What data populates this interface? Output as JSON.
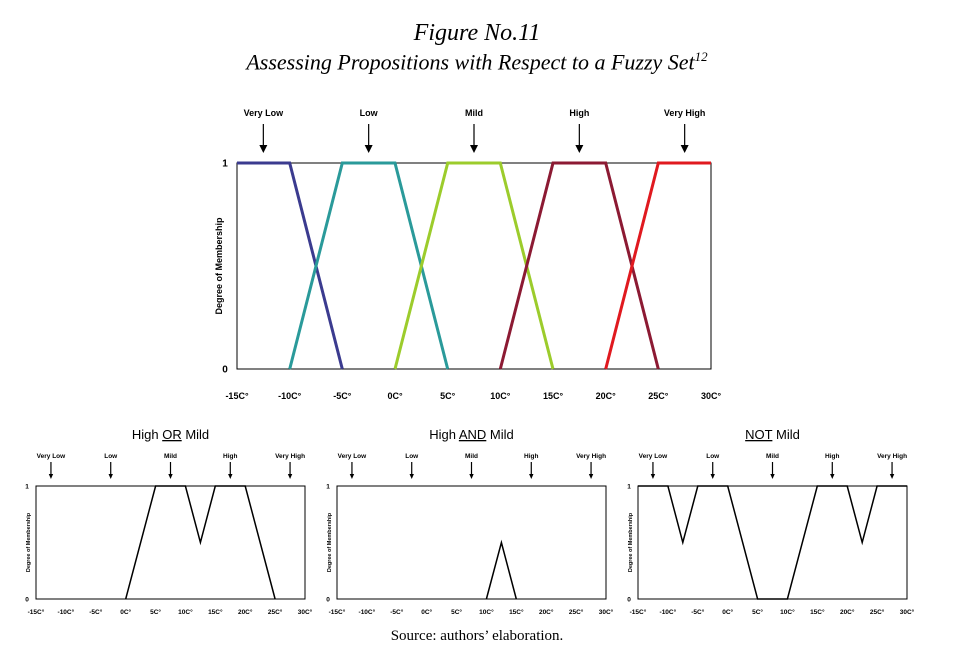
{
  "figure": {
    "title": "Figure No.11",
    "subtitle": "Assessing Propositions with Respect to a Fuzzy Set",
    "subtitle_sup": "12",
    "source": "Source: authors’ elaboration."
  },
  "chart_data": [
    {
      "type": "line",
      "title": "",
      "xlabel": "",
      "ylabel": "Degree of Membership",
      "x_ticks": [
        -15,
        -10,
        -5,
        0,
        5,
        10,
        15,
        20,
        25,
        30
      ],
      "x_tick_labels": [
        "-15C°",
        "-10C°",
        "-5C°",
        "0C°",
        "5C°",
        "10C°",
        "15C°",
        "20C°",
        "25C°",
        "30C°"
      ],
      "y_ticks": [
        0,
        1
      ],
      "y_tick_labels": [
        "0",
        "1"
      ],
      "xlim": [
        -15,
        30
      ],
      "ylim": [
        0,
        1
      ],
      "annotations": [
        {
          "text": "Very Low",
          "x": -12.5
        },
        {
          "text": "Low",
          "x": -2.5
        },
        {
          "text": "Mild",
          "x": 7.5
        },
        {
          "text": "High",
          "x": 17.5
        },
        {
          "text": "Very High",
          "x": 27.5
        }
      ],
      "series": [
        {
          "name": "Very Low",
          "color": "#3b3b8f",
          "points": [
            [
              -15,
              1
            ],
            [
              -10,
              1
            ],
            [
              -5,
              0
            ]
          ]
        },
        {
          "name": "Low",
          "color": "#2a9a9a",
          "points": [
            [
              -10,
              0
            ],
            [
              -5,
              1
            ],
            [
              0,
              1
            ],
            [
              5,
              0
            ]
          ]
        },
        {
          "name": "Mild",
          "color": "#9ccc2c",
          "points": [
            [
              0,
              0
            ],
            [
              5,
              1
            ],
            [
              10,
              1
            ],
            [
              15,
              0
            ]
          ]
        },
        {
          "name": "High",
          "color": "#8c1a33",
          "points": [
            [
              10,
              0
            ],
            [
              15,
              1
            ],
            [
              20,
              1
            ],
            [
              25,
              0
            ]
          ]
        },
        {
          "name": "Very High",
          "color": "#e0191f",
          "points": [
            [
              20,
              0
            ],
            [
              25,
              1
            ],
            [
              30,
              1
            ]
          ]
        }
      ]
    },
    {
      "type": "line",
      "title": "High OR Mild",
      "title_parts": [
        "High ",
        "OR",
        " Mild"
      ],
      "ylabel": "Degree of Membership",
      "x_ticks": [
        -15,
        -10,
        -5,
        0,
        5,
        10,
        15,
        20,
        25,
        30
      ],
      "x_tick_labels": [
        "-15C°",
        "-10C°",
        "-5C°",
        "0C°",
        "5C°",
        "10C°",
        "15C°",
        "20C°",
        "25C°",
        "30C°"
      ],
      "y_ticks": [
        0,
        1
      ],
      "y_tick_labels": [
        "0",
        "1"
      ],
      "xlim": [
        -15,
        30
      ],
      "ylim": [
        0,
        1
      ],
      "annotations": [
        {
          "text": "Very Low",
          "x": -12.5
        },
        {
          "text": "Low",
          "x": -2.5
        },
        {
          "text": "Mild",
          "x": 7.5
        },
        {
          "text": "High",
          "x": 17.5
        },
        {
          "text": "Very High",
          "x": 27.5
        }
      ],
      "series": [
        {
          "name": "High OR Mild",
          "color": "#000000",
          "points": [
            [
              0,
              0
            ],
            [
              5,
              1
            ],
            [
              10,
              1
            ],
            [
              12.5,
              0.5
            ],
            [
              15,
              1
            ],
            [
              20,
              1
            ],
            [
              25,
              0
            ]
          ]
        }
      ]
    },
    {
      "type": "line",
      "title": "High AND Mild",
      "title_parts": [
        "High ",
        "AND",
        " Mild"
      ],
      "ylabel": "Degree of Membership",
      "x_ticks": [
        -15,
        -10,
        -5,
        0,
        5,
        10,
        15,
        20,
        25,
        30
      ],
      "x_tick_labels": [
        "-15C°",
        "-10C°",
        "-5C°",
        "0C°",
        "5C°",
        "10C°",
        "15C°",
        "20C°",
        "25C°",
        "30C°"
      ],
      "y_ticks": [
        0,
        1
      ],
      "y_tick_labels": [
        "0",
        "1"
      ],
      "xlim": [
        -15,
        30
      ],
      "ylim": [
        0,
        1
      ],
      "annotations": [
        {
          "text": "Very Low",
          "x": -12.5
        },
        {
          "text": "Low",
          "x": -2.5
        },
        {
          "text": "Mild",
          "x": 7.5
        },
        {
          "text": "High",
          "x": 17.5
        },
        {
          "text": "Very High",
          "x": 27.5
        }
      ],
      "series": [
        {
          "name": "High AND Mild",
          "color": "#000000",
          "points": [
            [
              10,
              0
            ],
            [
              12.5,
              0.5
            ],
            [
              15,
              0
            ]
          ]
        }
      ]
    },
    {
      "type": "line",
      "title": "NOT Mild",
      "title_parts": [
        "",
        "NOT",
        " Mild"
      ],
      "ylabel": "Degree of Membership",
      "x_ticks": [
        -15,
        -10,
        -5,
        0,
        5,
        10,
        15,
        20,
        25,
        30
      ],
      "x_tick_labels": [
        "-15C°",
        "-10C°",
        "-5C°",
        "0C°",
        "5C°",
        "10C°",
        "15C°",
        "20C°",
        "25C°",
        "30C°"
      ],
      "y_ticks": [
        0,
        1
      ],
      "y_tick_labels": [
        "0",
        "1"
      ],
      "xlim": [
        -15,
        30
      ],
      "ylim": [
        0,
        1
      ],
      "annotations": [
        {
          "text": "Very Low",
          "x": -12.5
        },
        {
          "text": "Low",
          "x": -2.5
        },
        {
          "text": "Mild",
          "x": 7.5
        },
        {
          "text": "High",
          "x": 17.5
        },
        {
          "text": "Very High",
          "x": 27.5
        }
      ],
      "series": [
        {
          "name": "NOT Mild",
          "color": "#000000",
          "points": [
            [
              -15,
              1
            ],
            [
              -10,
              1
            ],
            [
              -7.5,
              0.5
            ],
            [
              -5,
              1
            ],
            [
              0,
              1
            ],
            [
              5,
              0
            ],
            [
              10,
              0
            ],
            [
              15,
              1
            ],
            [
              20,
              1
            ],
            [
              22.5,
              0.5
            ],
            [
              25,
              1
            ],
            [
              30,
              1
            ]
          ]
        }
      ]
    }
  ]
}
